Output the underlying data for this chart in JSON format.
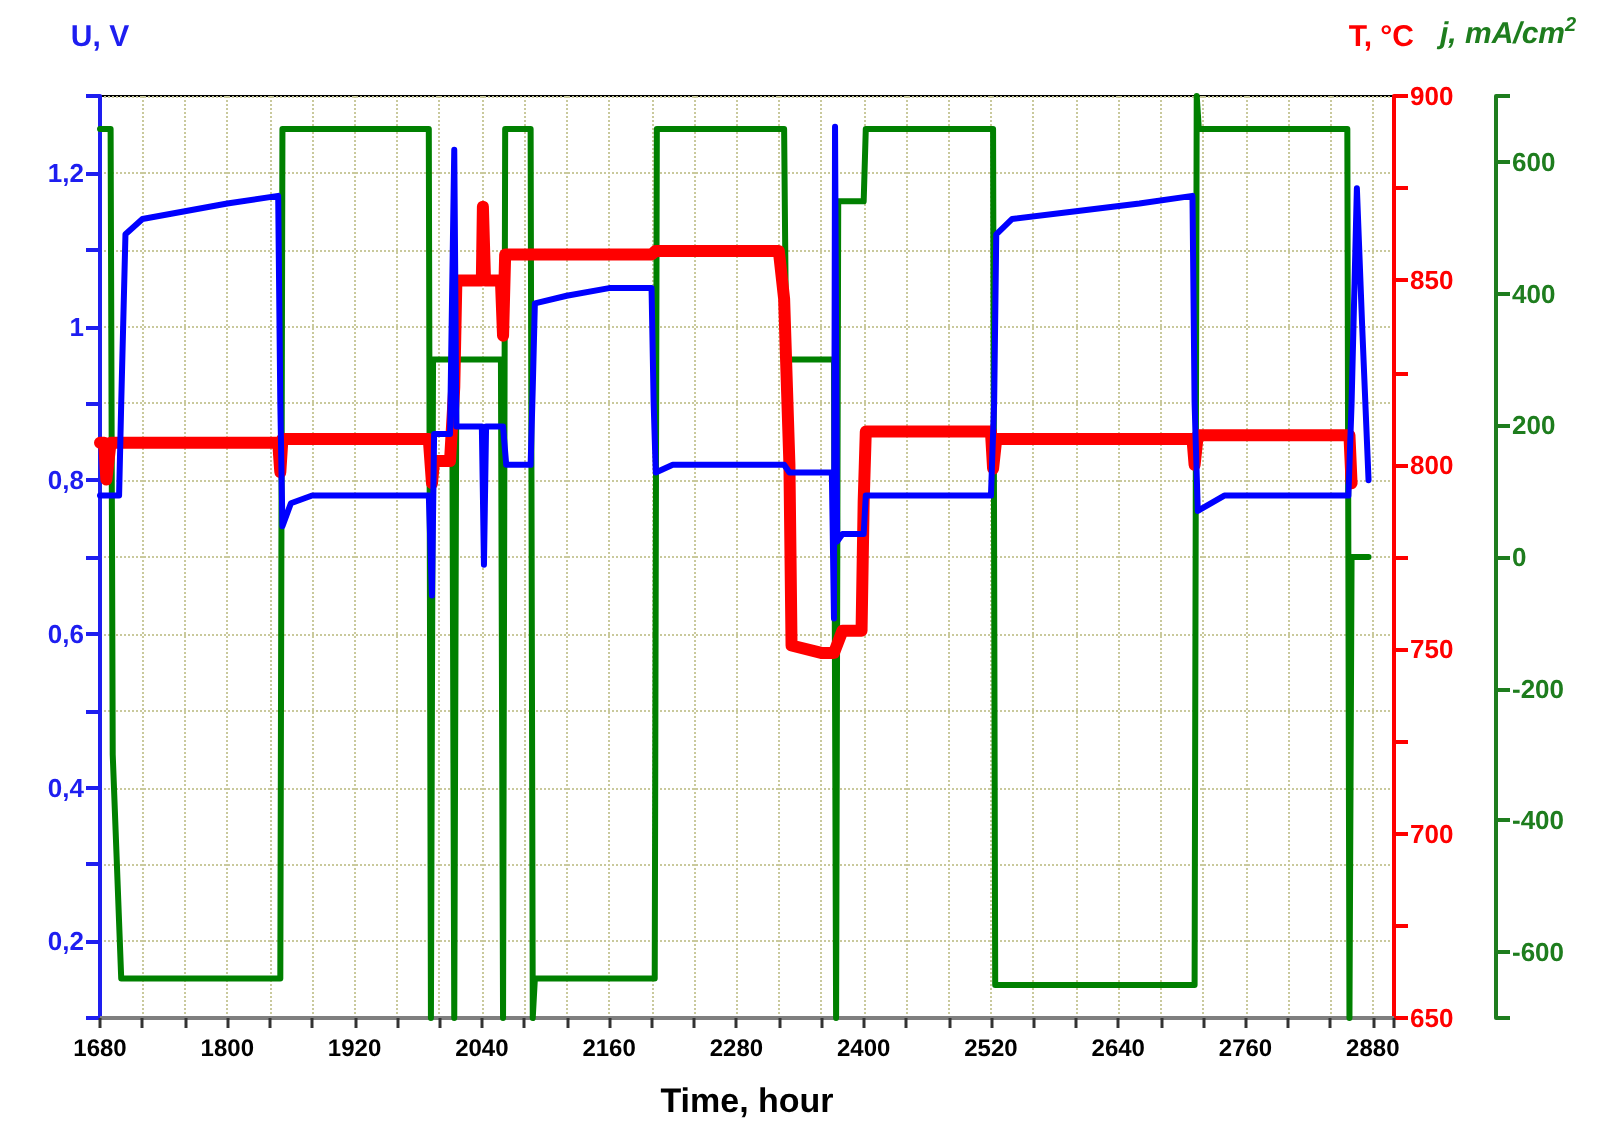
{
  "chart_data": {
    "type": "line",
    "xlabel": "Time, hour",
    "ylabel": "U, V",
    "y2label": "T, °C",
    "y3label": "j, mA/cm$^{2}$",
    "xlim": [
      1680,
      2900
    ],
    "xticks": [
      1680,
      {
        "value": 1720,
        "label": null
      },
      {
        "value": 1760,
        "label": null
      },
      1800,
      {
        "value": 1840,
        "label": null
      },
      {
        "value": 1880,
        "label": null
      },
      1920,
      {
        "value": 1960,
        "label": null
      },
      {
        "value": 2000,
        "label": null
      },
      2040,
      {
        "value": 2080,
        "label": null
      },
      {
        "value": 2120,
        "label": null
      },
      2160,
      {
        "value": 2200,
        "label": null
      },
      {
        "value": 2240,
        "label": null
      },
      2280,
      {
        "value": 2320,
        "label": null
      },
      {
        "value": 2360,
        "label": null
      },
      2400,
      {
        "value": 2440,
        "label": null
      },
      {
        "value": 2480,
        "label": null
      },
      2520,
      {
        "value": 2560,
        "label": null
      },
      {
        "value": 2600,
        "label": null
      },
      2640,
      {
        "value": 2680,
        "label": null
      },
      {
        "value": 2720,
        "label": null
      },
      2760,
      {
        "value": 2800,
        "label": null
      },
      {
        "value": 2840,
        "label": null
      },
      2880
    ],
    "ylim": [
      0.1,
      1.3
    ],
    "yticks": [
      {
        "value": 0.1,
        "label": null
      },
      {
        "value": 0.2,
        "label": "0,2"
      },
      {
        "value": 0.3,
        "label": null
      },
      {
        "value": 0.4,
        "label": "0,4"
      },
      {
        "value": 0.5,
        "label": null
      },
      {
        "value": 0.6,
        "label": "0,6"
      },
      {
        "value": 0.7,
        "label": null
      },
      {
        "value": 0.8,
        "label": "0,8"
      },
      {
        "value": 0.9,
        "label": null
      },
      {
        "value": 1.0,
        "label": "1"
      },
      {
        "value": 1.1,
        "label": null
      },
      {
        "value": 1.2,
        "label": "1,2"
      },
      {
        "value": 1.3,
        "label": null
      }
    ],
    "y2lim": [
      650,
      900
    ],
    "y2ticks": [
      650,
      {
        "value": 675,
        "label": null
      },
      700,
      {
        "value": 725,
        "label": null
      },
      750,
      {
        "value": 775,
        "label": null
      },
      800,
      {
        "value": 825,
        "label": null
      },
      850,
      {
        "value": 875,
        "label": null
      },
      900
    ],
    "y3lim": [
      -700,
      700
    ],
    "y3ticks": [
      {
        "value": -700,
        "label": null
      },
      -600,
      -400,
      -200,
      0,
      200,
      400,
      600,
      {
        "value": 700,
        "label": null
      }
    ],
    "grid": true,
    "marker": "none",
    "line_style": "solid",
    "series": [
      {
        "type": "line",
        "axis": "y3",
        "color": "#008000",
        "x": [
          1680,
          1690,
          1692,
          1700,
          1850,
          1852,
          1990,
          1992,
          1994,
          2012,
          2014,
          2016,
          2058,
          2060,
          2062,
          2086,
          2088,
          2090,
          2203,
          2205,
          2325,
          2327,
          2372,
          2374,
          2376,
          2400,
          2402,
          2522,
          2524,
          2712,
          2714,
          2716,
          2856,
          2858,
          2860,
          2876
        ],
        "values": [
          650,
          650,
          -300,
          -640,
          -640,
          650,
          650,
          -700,
          300,
          300,
          -700,
          300,
          300,
          -700,
          650,
          650,
          -700,
          -640,
          -640,
          650,
          650,
          300,
          300,
          -700,
          540,
          540,
          650,
          650,
          -650,
          -650,
          700,
          650,
          650,
          -700,
          0,
          0
        ]
      },
      {
        "type": "line",
        "axis": "y2",
        "color": "#ff0000",
        "x": [
          1680,
          1684,
          1686,
          1690,
          1692,
          1720,
          1800,
          1848,
          1850,
          1852,
          1900,
          1990,
          1993,
          1995,
          2010,
          2014,
          2016,
          2018,
          2040,
          2041,
          2043,
          2058,
          2060,
          2062,
          2120,
          2200,
          2204,
          2260,
          2320,
          2325,
          2330,
          2332,
          2360,
          2372,
          2380,
          2398,
          2400,
          2402,
          2460,
          2520,
          2522,
          2525,
          2600,
          2710,
          2712,
          2715,
          2800,
          2858,
          2860
        ],
        "values": [
          806,
          806,
          796,
          806,
          806,
          806,
          806,
          806,
          798,
          807,
          807,
          807,
          795,
          801,
          801,
          821,
          850,
          850,
          850,
          870,
          850,
          850,
          835,
          857,
          857,
          857,
          858,
          858,
          858,
          845,
          800,
          751,
          749,
          749,
          755,
          755,
          790,
          809,
          809,
          809,
          799,
          807,
          807,
          807,
          800,
          808,
          808,
          808,
          795
        ]
      },
      {
        "type": "line",
        "color": "#0000ff",
        "x": [
          1680,
          1698,
          1700,
          1704,
          1720,
          1760,
          1800,
          1848,
          1850,
          1852,
          1860,
          1880,
          1940,
          1990,
          1993,
          1995,
          2010,
          2014,
          2016,
          2040,
          2042,
          2044,
          2060,
          2063,
          2086,
          2088,
          2090,
          2120,
          2160,
          2200,
          2202,
          2204,
          2220,
          2300,
          2325,
          2330,
          2370,
          2372,
          2373,
          2375,
          2380,
          2400,
          2402,
          2460,
          2520,
          2523,
          2525,
          2540,
          2600,
          2660,
          2710,
          2712,
          2715,
          2740,
          2800,
          2857,
          2860,
          2865,
          2870,
          2876
        ],
        "values": [
          0.78,
          0.78,
          0.9,
          1.12,
          1.14,
          1.15,
          1.16,
          1.17,
          0.9,
          0.74,
          0.77,
          0.78,
          0.78,
          0.78,
          0.65,
          0.86,
          0.86,
          1.23,
          0.87,
          0.87,
          0.69,
          0.87,
          0.87,
          0.82,
          0.82,
          0.92,
          1.03,
          1.04,
          1.05,
          1.05,
          0.9,
          0.81,
          0.82,
          0.82,
          0.82,
          0.81,
          0.81,
          0.62,
          1.26,
          0.72,
          0.73,
          0.73,
          0.78,
          0.78,
          0.78,
          0.9,
          1.12,
          1.14,
          1.15,
          1.16,
          1.17,
          0.9,
          0.76,
          0.78,
          0.78,
          0.78,
          0.9,
          1.18,
          1.0,
          0.8
        ]
      }
    ]
  }
}
